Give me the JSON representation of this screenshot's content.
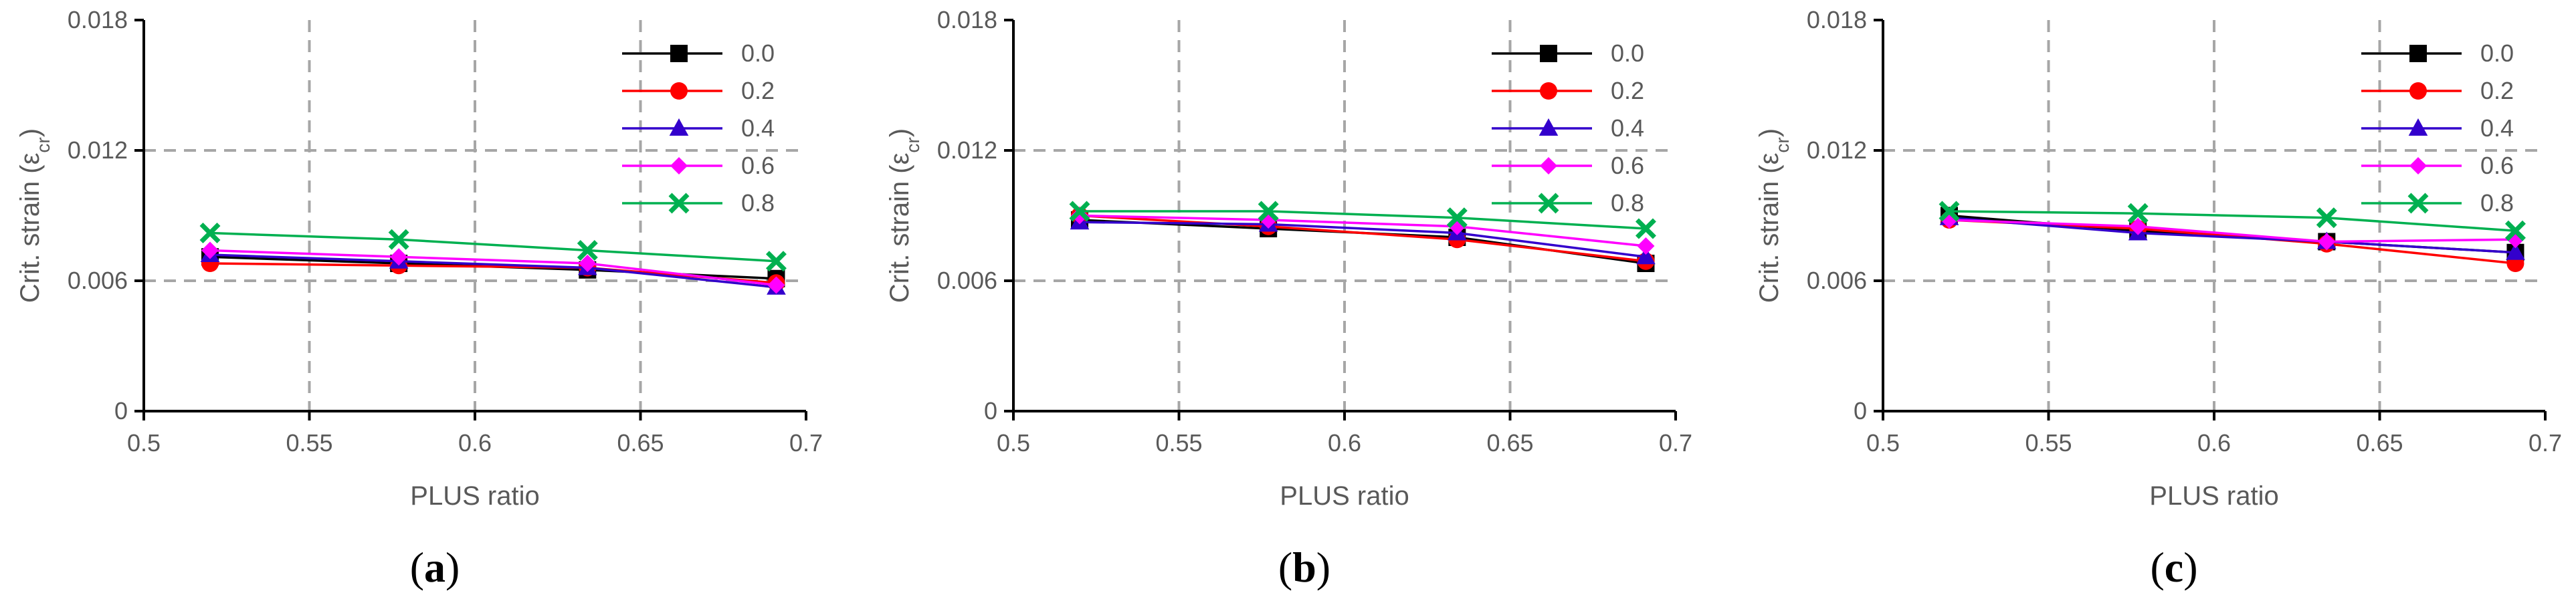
{
  "colors": {
    "axis": "#000000",
    "grid": "#a6a6a6",
    "text": "#595959",
    "series": [
      "#000000",
      "#ff0000",
      "#3300cc",
      "#ff00ff",
      "#00b050"
    ]
  },
  "chart_data": [
    {
      "type": "line",
      "panel_label": "a",
      "title": "",
      "xlabel": "PLUS ratio",
      "ylabel": "Crit. strain (ε",
      "ylabel_subscript": "cr",
      "ylabel_suffix": ")",
      "xlim": [
        0.5,
        0.7
      ],
      "ylim": [
        0,
        0.018
      ],
      "xticks": [
        0.5,
        0.55,
        0.6,
        0.65,
        0.7
      ],
      "xtick_labels": [
        "0.5",
        "0.55",
        "0.6",
        "0.65",
        "0.7"
      ],
      "yticks": [
        0,
        0.006,
        0.012,
        0.018
      ],
      "ytick_labels": [
        "0",
        "0.006",
        "0.012",
        "0.018"
      ],
      "grid": "dashed",
      "legend_position": "top-right",
      "x": [
        0.52,
        0.577,
        0.634,
        0.691
      ],
      "series": [
        {
          "name": "0.0",
          "marker": "square",
          "values": [
            0.0071,
            0.0068,
            0.0065,
            0.0061
          ]
        },
        {
          "name": "0.2",
          "marker": "circle",
          "values": [
            0.0068,
            0.0067,
            0.0066,
            0.0059
          ]
        },
        {
          "name": "0.4",
          "marker": "triangle",
          "values": [
            0.0072,
            0.0069,
            0.0066,
            0.0057
          ]
        },
        {
          "name": "0.6",
          "marker": "diamond",
          "values": [
            0.0074,
            0.0071,
            0.0068,
            0.0058
          ]
        },
        {
          "name": "0.8",
          "marker": "x",
          "values": [
            0.0082,
            0.0079,
            0.0074,
            0.0069
          ]
        }
      ]
    },
    {
      "type": "line",
      "panel_label": "b",
      "title": "",
      "xlabel": "PLUS ratio",
      "ylabel": "Crit. strain (ε",
      "ylabel_subscript": "cr",
      "ylabel_suffix": ")",
      "xlim": [
        0.5,
        0.7
      ],
      "ylim": [
        0,
        0.018
      ],
      "xticks": [
        0.5,
        0.55,
        0.6,
        0.65,
        0.7
      ],
      "xtick_labels": [
        "0.5",
        "0.55",
        "0.6",
        "0.65",
        "0.7"
      ],
      "yticks": [
        0,
        0.006,
        0.012,
        0.018
      ],
      "ytick_labels": [
        "0",
        "0.006",
        "0.012",
        "0.018"
      ],
      "grid": "dashed",
      "legend_position": "top-right",
      "x": [
        0.52,
        0.577,
        0.634,
        0.691
      ],
      "series": [
        {
          "name": "0.0",
          "marker": "square",
          "values": [
            0.0088,
            0.0084,
            0.008,
            0.0068
          ]
        },
        {
          "name": "0.2",
          "marker": "circle",
          "values": [
            0.009,
            0.0085,
            0.0079,
            0.0069
          ]
        },
        {
          "name": "0.4",
          "marker": "triangle",
          "values": [
            0.0087,
            0.0086,
            0.0082,
            0.0071
          ]
        },
        {
          "name": "0.6",
          "marker": "diamond",
          "values": [
            0.009,
            0.0088,
            0.0085,
            0.0076
          ]
        },
        {
          "name": "0.8",
          "marker": "x",
          "values": [
            0.0092,
            0.0092,
            0.0089,
            0.0084
          ]
        }
      ]
    },
    {
      "type": "line",
      "panel_label": "c",
      "title": "",
      "xlabel": "PLUS ratio",
      "ylabel": "Crit. strain (ε",
      "ylabel_subscript": "cr",
      "ylabel_suffix": ")",
      "xlim": [
        0.5,
        0.7
      ],
      "ylim": [
        0,
        0.018
      ],
      "xticks": [
        0.5,
        0.55,
        0.6,
        0.65,
        0.7
      ],
      "xtick_labels": [
        "0.5",
        "0.55",
        "0.6",
        "0.65",
        "0.7"
      ],
      "yticks": [
        0,
        0.006,
        0.012,
        0.018
      ],
      "ytick_labels": [
        "0",
        "0.006",
        "0.012",
        "0.018"
      ],
      "grid": "dashed",
      "legend_position": "top-right",
      "x": [
        0.52,
        0.577,
        0.634,
        0.691
      ],
      "series": [
        {
          "name": "0.0",
          "marker": "square",
          "values": [
            0.009,
            0.0083,
            0.0078,
            0.0073
          ]
        },
        {
          "name": "0.2",
          "marker": "circle",
          "values": [
            0.0088,
            0.0084,
            0.0077,
            0.0068
          ]
        },
        {
          "name": "0.4",
          "marker": "triangle",
          "values": [
            0.0089,
            0.0082,
            0.0078,
            0.0073
          ]
        },
        {
          "name": "0.6",
          "marker": "diamond",
          "values": [
            0.0088,
            0.0085,
            0.0078,
            0.0079
          ]
        },
        {
          "name": "0.8",
          "marker": "x",
          "values": [
            0.0092,
            0.0091,
            0.0089,
            0.0083
          ]
        }
      ]
    }
  ]
}
